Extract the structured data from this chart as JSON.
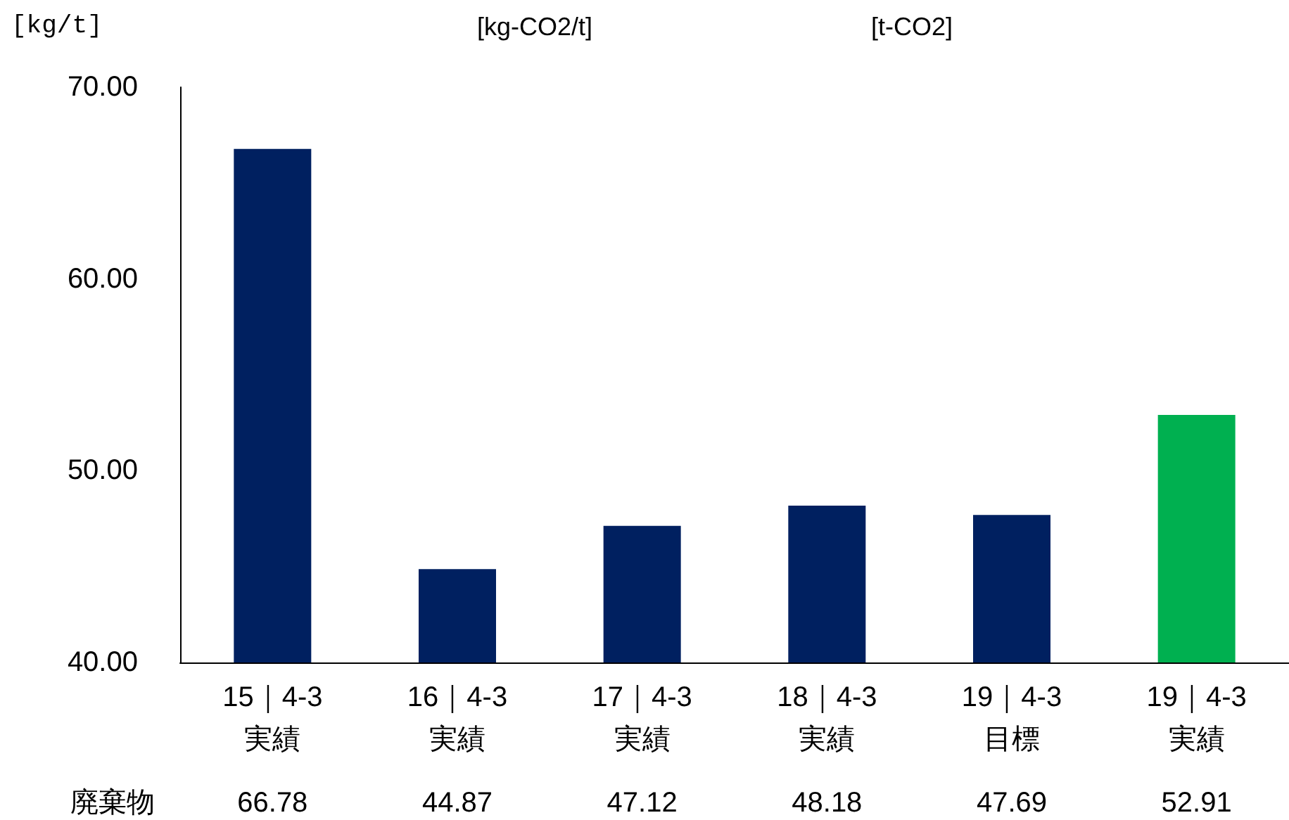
{
  "chart_data": {
    "type": "bar",
    "ylabel": "[kg/t]",
    "annotations": [
      "[kg-CO2/t]",
      "[t-CO2]"
    ],
    "categories": [
      "15｜4-3\n実績",
      "16｜4-3\n実績",
      "17｜4-3\n実績",
      "18｜4-3\n実績",
      "19｜4-3\n目標",
      "19｜4-3\n実績"
    ],
    "series": [
      {
        "name": "廃棄物",
        "values": [
          66.78,
          44.87,
          47.12,
          48.18,
          47.69,
          52.91
        ],
        "colors": [
          "#002060",
          "#002060",
          "#002060",
          "#002060",
          "#002060",
          "#00b050"
        ]
      }
    ],
    "ylim": [
      40,
      70
    ],
    "yticks": [
      {
        "value": 40,
        "label": "40.00"
      },
      {
        "value": 50,
        "label": "50.00"
      },
      {
        "value": 60,
        "label": "60.00"
      },
      {
        "value": 70,
        "label": "70.00"
      }
    ],
    "grid": false,
    "legend": false,
    "data_labels": true
  }
}
